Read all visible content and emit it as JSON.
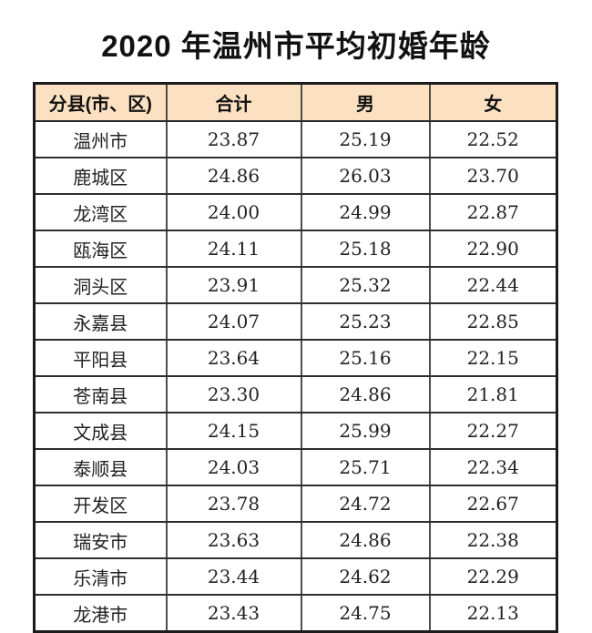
{
  "title": "2020 年温州市平均初婚年龄",
  "colors": {
    "header_bg": "#fbe1c2",
    "outer_border": "#1b1b1b",
    "inner_rule": "#2e2e2e",
    "text": "#1a1a1a"
  },
  "chart_data": {
    "type": "table",
    "title": "2020 年温州市平均初婚年龄",
    "columns": [
      "分县(市、区)",
      "合计",
      "男",
      "女"
    ],
    "rows": [
      [
        "温州市",
        "23.87",
        "25.19",
        "22.52"
      ],
      [
        "鹿城区",
        "24.86",
        "26.03",
        "23.70"
      ],
      [
        "龙湾区",
        "24.00",
        "24.99",
        "22.87"
      ],
      [
        "瓯海区",
        "24.11",
        "25.18",
        "22.90"
      ],
      [
        "洞头区",
        "23.91",
        "25.32",
        "22.44"
      ],
      [
        "永嘉县",
        "24.07",
        "25.23",
        "22.85"
      ],
      [
        "平阳县",
        "23.64",
        "25.16",
        "22.15"
      ],
      [
        "苍南县",
        "23.30",
        "24.86",
        "21.81"
      ],
      [
        "文成县",
        "24.15",
        "25.99",
        "22.27"
      ],
      [
        "泰顺县",
        "24.03",
        "25.71",
        "22.34"
      ],
      [
        "开发区",
        "23.78",
        "24.72",
        "22.67"
      ],
      [
        "瑞安市",
        "23.63",
        "24.86",
        "22.38"
      ],
      [
        "乐清市",
        "23.44",
        "24.62",
        "22.29"
      ],
      [
        "龙港市",
        "23.43",
        "24.75",
        "22.13"
      ]
    ]
  }
}
